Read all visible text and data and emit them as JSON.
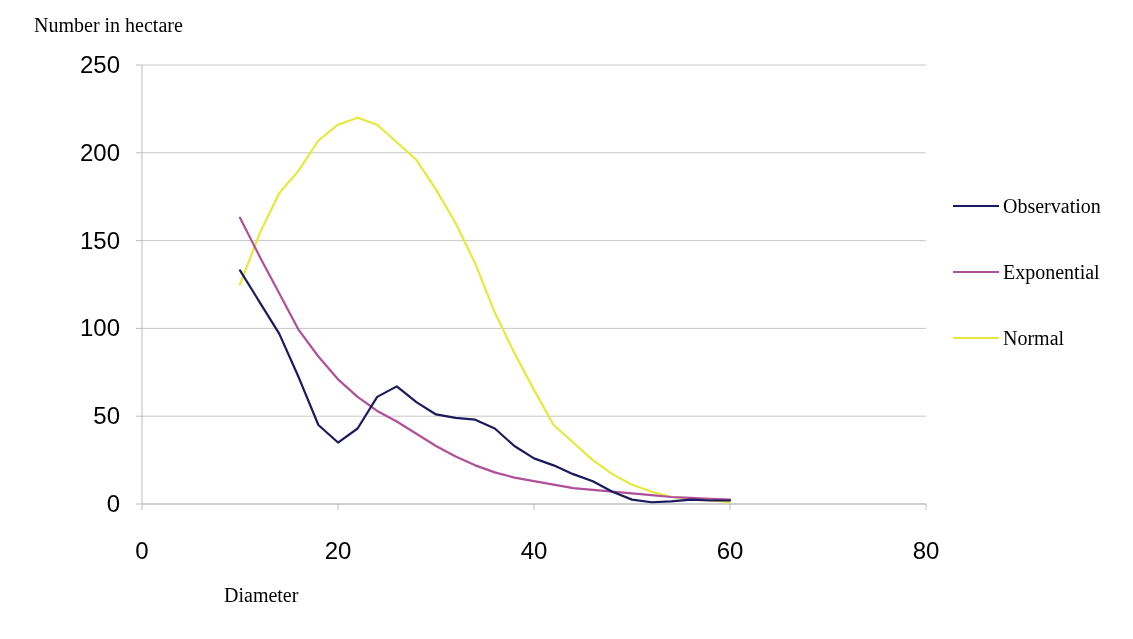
{
  "chart_data": {
    "type": "line",
    "ylabel": "Number in hectare",
    "xlabel": "Diameter",
    "x": [
      10,
      12,
      14,
      16,
      18,
      20,
      22,
      24,
      26,
      28,
      30,
      32,
      34,
      36,
      38,
      40,
      42,
      44,
      46,
      48,
      50,
      52,
      54,
      56,
      58,
      60
    ],
    "series": [
      {
        "name": "Observation",
        "color": "#1a1a5e",
        "values": [
          133,
          115,
          97,
          72,
          45,
          35,
          43,
          61,
          67,
          58,
          51,
          49,
          48,
          43,
          33,
          26,
          22,
          17,
          13,
          7,
          2.5,
          1,
          1.5,
          2.5,
          2,
          2
        ]
      },
      {
        "name": "Exponential",
        "color": "#b0509a",
        "values": [
          163,
          141,
          120,
          99,
          84,
          71,
          61,
          53,
          47,
          40,
          33,
          27,
          22,
          18,
          15,
          13,
          11,
          9,
          8,
          7,
          6,
          5,
          4,
          3.5,
          3,
          2.5
        ]
      },
      {
        "name": "Normal",
        "color": "#e8e83c",
        "values": [
          125,
          154,
          177,
          190,
          207,
          216,
          220,
          216,
          206,
          196,
          179,
          160,
          137,
          109,
          86,
          65,
          45,
          35,
          25,
          17,
          11,
          7,
          4,
          3,
          2,
          1
        ]
      }
    ],
    "xlim": [
      0,
      80
    ],
    "xticks": [
      0,
      20,
      40,
      60,
      80
    ],
    "ylim": [
      0,
      250
    ],
    "yticks": [
      0,
      50,
      100,
      150,
      200,
      250
    ],
    "grid": "y",
    "legend": "right",
    "marker": "none",
    "line_style": "solid"
  }
}
